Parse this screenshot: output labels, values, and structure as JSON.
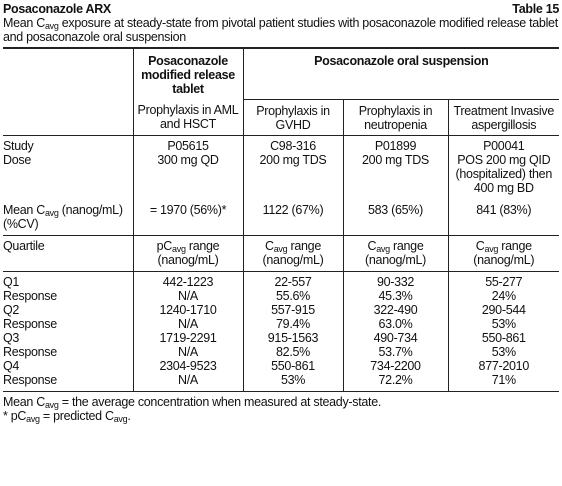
{
  "header": {
    "title": "Posaconazole ARX",
    "table_number": "Table 15"
  },
  "caption": [
    {
      "text": "Mean C"
    },
    {
      "sub": "avg"
    },
    {
      "text": " exposure at steady-state from pivotal patient studies with posaconazole modified release tablet and posaconazole oral suspension"
    }
  ],
  "table": {
    "group_headers": [
      "Posaconazole modified release tablet",
      "Posaconazole oral suspension"
    ],
    "column_headers": [
      "Prophylaxis in AML and HSCT",
      "Prophylaxis in GVHD",
      "Prophylaxis in neutropenia",
      "Treatment Invasive aspergillosis"
    ],
    "study_rows": [
      {
        "label": "Study",
        "cells": [
          "P05615",
          "C98-316",
          "P01899",
          "P00041"
        ]
      },
      {
        "label": "Dose",
        "cells": [
          "300 mg QD",
          "200 mg TDS",
          "200 mg TDS",
          "POS 200 mg QID (hospitalized) then 400 mg BD"
        ]
      },
      {
        "label": [
          {
            "text": "Mean C"
          },
          {
            "sub": "avg"
          },
          {
            "text": " (nanog/mL) (%CV)"
          }
        ],
        "cells": [
          "= 1970 (56%)*",
          "1122 (67%)",
          "583 (65%)",
          "841 (83%)"
        ]
      }
    ],
    "quartile_row": {
      "label": "Quartile",
      "cells": [
        [
          {
            "text": "pC"
          },
          {
            "sub": "avg"
          },
          {
            "text": " range (nanog/mL)"
          }
        ],
        [
          {
            "text": "C"
          },
          {
            "sub": "avg"
          },
          {
            "text": " range (nanog/mL)"
          }
        ],
        [
          {
            "text": "C"
          },
          {
            "sub": "avg"
          },
          {
            "text": " range (nanog/mL)"
          }
        ],
        [
          {
            "text": "C"
          },
          {
            "sub": "avg"
          },
          {
            "text": " range (nanog/mL)"
          }
        ]
      ]
    },
    "quartile_rows": [
      {
        "label": "Q1",
        "cells": [
          "442-1223",
          "22-557",
          "90-332",
          "55-277"
        ]
      },
      {
        "label": "Response",
        "cells": [
          "N/A",
          "55.6%",
          "45.3%",
          "24%"
        ]
      },
      {
        "label": "Q2",
        "cells": [
          "1240-1710",
          "557-915",
          "322-490",
          "290-544"
        ]
      },
      {
        "label": "Response",
        "cells": [
          "N/A",
          "79.4%",
          "63.0%",
          "53%"
        ]
      },
      {
        "label": "Q3",
        "cells": [
          "1719-2291",
          "915-1563",
          "490-734",
          "550-861"
        ]
      },
      {
        "label": "Response",
        "cells": [
          "N/A",
          "82.5%",
          "53.7%",
          "53%"
        ]
      },
      {
        "label": "Q4",
        "cells": [
          "2304-9523",
          "550-861",
          "734-2200",
          "877-2010"
        ]
      },
      {
        "label": "Response",
        "cells": [
          "N/A",
          "53%",
          "72.2%",
          "71%"
        ]
      }
    ]
  },
  "footnotes": [
    [
      {
        "text": "Mean C"
      },
      {
        "sub": "avg"
      },
      {
        "text": " = the average concentration when measured at steady-state."
      }
    ],
    [
      {
        "text": "* pC"
      },
      {
        "sub": "avg"
      },
      {
        "text": " = predicted C"
      },
      {
        "sub": "avg"
      },
      {
        "text": "."
      }
    ]
  ]
}
